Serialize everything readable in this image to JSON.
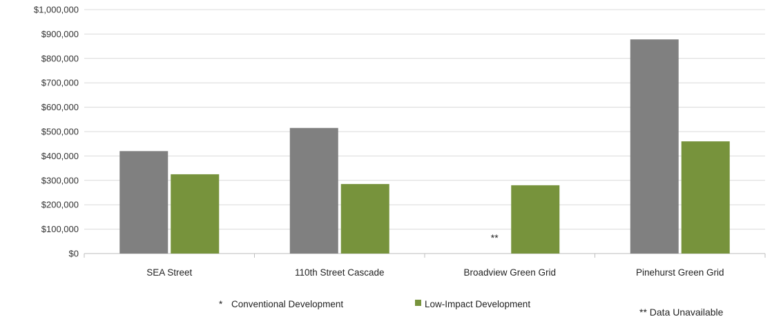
{
  "chart_data": {
    "type": "bar",
    "categories": [
      "SEA Street",
      "110th Street Cascade",
      "Broadview Green Grid",
      "Pinehurst Green Grid"
    ],
    "series": [
      {
        "name": "Conventional Development",
        "values": [
          420000,
          515000,
          null,
          878000
        ],
        "color": "#808080"
      },
      {
        "name": "Low-Impact Development",
        "values": [
          325000,
          285000,
          280000,
          460000
        ],
        "color": "#77933c"
      }
    ],
    "ylim": [
      0,
      1000000
    ],
    "y_ticks": [
      "$0",
      "$100,000",
      "$200,000",
      "$300,000",
      "$400,000",
      "$500,000",
      "$600,000",
      "$700,000",
      "$800,000",
      "$900,000",
      "$1,000,000"
    ],
    "grid": true,
    "legend_position": "bottom",
    "missing_marker": "**",
    "legend_marker_conventional": "*",
    "footnote": "** Data Unavailable"
  }
}
